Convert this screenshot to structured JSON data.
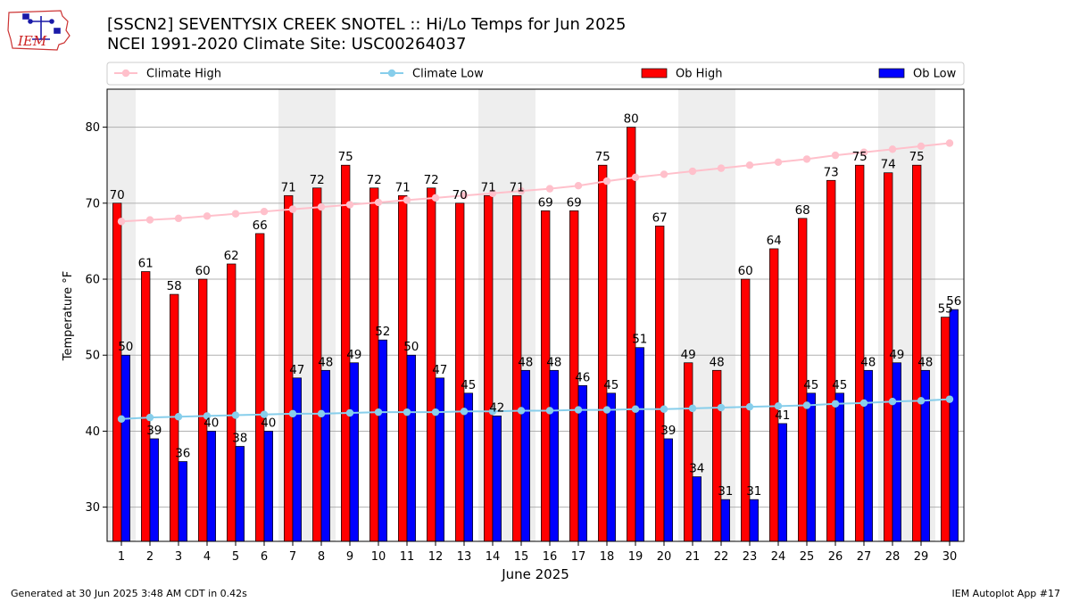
{
  "header": {
    "title_line1": "[SSCN2] SEVENTYSIX CREEK SNOTEL :: Hi/Lo Temps for Jun 2025",
    "title_line2": "NCEI 1991-2020 Climate Site: USC00264037",
    "logo_text": "IEM"
  },
  "footer": {
    "generated": "Generated at 30 Jun 2025 3:48 AM CDT in 0.42s",
    "app": "IEM Autoplot App #17"
  },
  "colors": {
    "ob_high": "#ff0000",
    "ob_low": "#0000ff",
    "climate_high": "#ffc0cb",
    "climate_low": "#87ceeb",
    "weekend_shade": "#eeeeee",
    "grid": "#b0b0b0"
  },
  "chart_data": {
    "type": "bar",
    "xlabel": "June 2025",
    "ylabel": "Temperature °F",
    "ylim": [
      25.5,
      85
    ],
    "yticks": [
      30,
      40,
      50,
      60,
      70,
      80
    ],
    "grid": "horizontal",
    "legend_position": "top",
    "categories": [
      "1",
      "2",
      "3",
      "4",
      "5",
      "6",
      "7",
      "8",
      "9",
      "10",
      "11",
      "12",
      "13",
      "14",
      "15",
      "16",
      "17",
      "18",
      "19",
      "20",
      "21",
      "22",
      "23",
      "24",
      "25",
      "26",
      "27",
      "28",
      "29",
      "30"
    ],
    "shaded_days": [
      1,
      7,
      8,
      14,
      15,
      21,
      22,
      28,
      29
    ],
    "series": [
      {
        "name": "Ob High",
        "kind": "bar",
        "values": [
          70,
          61,
          58,
          60,
          62,
          66,
          71,
          72,
          75,
          72,
          71,
          72,
          70,
          71,
          71,
          69,
          69,
          75,
          80,
          67,
          49,
          48,
          60,
          64,
          68,
          73,
          75,
          74,
          75,
          55
        ],
        "labels": [
          "70",
          "61",
          "58",
          "60",
          "62",
          "66",
          "71",
          "72",
          "75",
          "72",
          "71",
          "72",
          "70",
          "71",
          "71",
          "69",
          "69",
          "75",
          "80",
          "67",
          "49",
          "48",
          "60",
          "64",
          "68",
          "73",
          "75",
          "74",
          "75",
          "55"
        ]
      },
      {
        "name": "Ob Low",
        "kind": "bar",
        "values": [
          50,
          39,
          36,
          40,
          38,
          40,
          47,
          48,
          49,
          52,
          50,
          47,
          45,
          42,
          48,
          48,
          46,
          45,
          51,
          39,
          34,
          31,
          31,
          41,
          45,
          45,
          48,
          49,
          48,
          56
        ],
        "labels": [
          "50",
          "39",
          "36",
          "40",
          "38",
          "40",
          "47",
          "48",
          "49",
          "52",
          "50",
          "47",
          "45",
          "42",
          "48",
          "48",
          "46",
          "45",
          "51",
          "39",
          "34",
          "31",
          "31",
          "41",
          "45",
          "45",
          "48",
          "49",
          "48",
          "56"
        ]
      },
      {
        "name": "Climate High",
        "kind": "line",
        "values": [
          67.6,
          67.8,
          68.0,
          68.3,
          68.6,
          68.9,
          69.2,
          69.5,
          69.8,
          70.1,
          70.4,
          70.7,
          71.0,
          71.3,
          71.6,
          71.9,
          72.3,
          72.9,
          73.4,
          73.8,
          74.2,
          74.6,
          75.0,
          75.4,
          75.8,
          76.3,
          76.7,
          77.1,
          77.5,
          77.9
        ]
      },
      {
        "name": "Climate Low",
        "kind": "line",
        "values": [
          41.6,
          41.8,
          41.9,
          42.0,
          42.1,
          42.2,
          42.3,
          42.3,
          42.4,
          42.5,
          42.5,
          42.5,
          42.6,
          42.6,
          42.7,
          42.7,
          42.8,
          42.8,
          42.9,
          42.9,
          43.0,
          43.1,
          43.2,
          43.3,
          43.4,
          43.6,
          43.7,
          43.9,
          44.0,
          44.2
        ]
      }
    ]
  }
}
